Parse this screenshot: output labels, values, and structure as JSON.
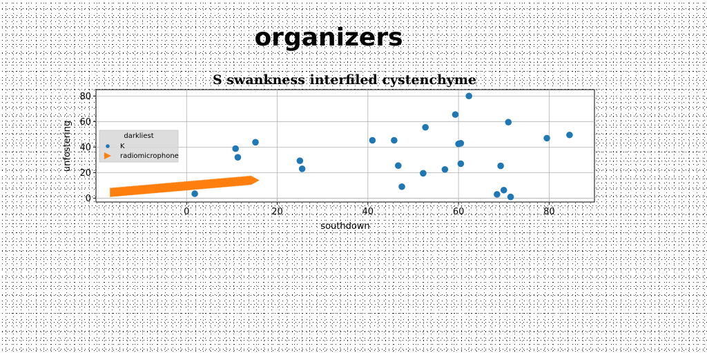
{
  "page": {
    "title": "organizers"
  },
  "chart_data": {
    "type": "scatter",
    "title": "S swankness interfiled cystenchyme",
    "xlabel": "southdown",
    "ylabel": "unfostering",
    "xlim": [
      -20,
      90
    ],
    "ylim": [
      -3,
      85
    ],
    "xticks": [
      0,
      20,
      40,
      60,
      80
    ],
    "yticks": [
      0,
      20,
      40,
      60,
      80
    ],
    "grid": true,
    "legend": {
      "title": "darkliest",
      "placement": "center-left"
    },
    "series": [
      {
        "name": "K",
        "color": "#1f77b4",
        "marker": "circle",
        "points": [
          [
            1.8,
            3.5
          ],
          [
            10.8,
            38.8
          ],
          [
            11.3,
            32.0
          ],
          [
            15.2,
            43.8
          ],
          [
            25.0,
            29.3
          ],
          [
            25.5,
            23.0
          ],
          [
            41.0,
            45.3
          ],
          [
            45.8,
            45.3
          ],
          [
            46.7,
            25.5
          ],
          [
            47.5,
            9.0
          ],
          [
            52.2,
            19.5
          ],
          [
            52.7,
            55.5
          ],
          [
            57.0,
            22.5
          ],
          [
            59.3,
            65.5
          ],
          [
            60.0,
            42.5
          ],
          [
            60.5,
            43.0
          ],
          [
            60.5,
            27.0
          ],
          [
            62.3,
            80.0
          ],
          [
            68.5,
            3.0
          ],
          [
            69.3,
            25.3
          ],
          [
            70.0,
            6.3
          ],
          [
            71.0,
            59.5
          ],
          [
            71.5,
            1.0
          ],
          [
            79.5,
            47.0
          ],
          [
            84.5,
            49.5
          ]
        ]
      },
      {
        "name": "radiomicrophone",
        "color": "#ff7f0e",
        "marker": "triangle-right",
        "x_start": -16,
        "y_start": 4.5,
        "x_end": 15,
        "y_end": 14.0
      }
    ]
  }
}
